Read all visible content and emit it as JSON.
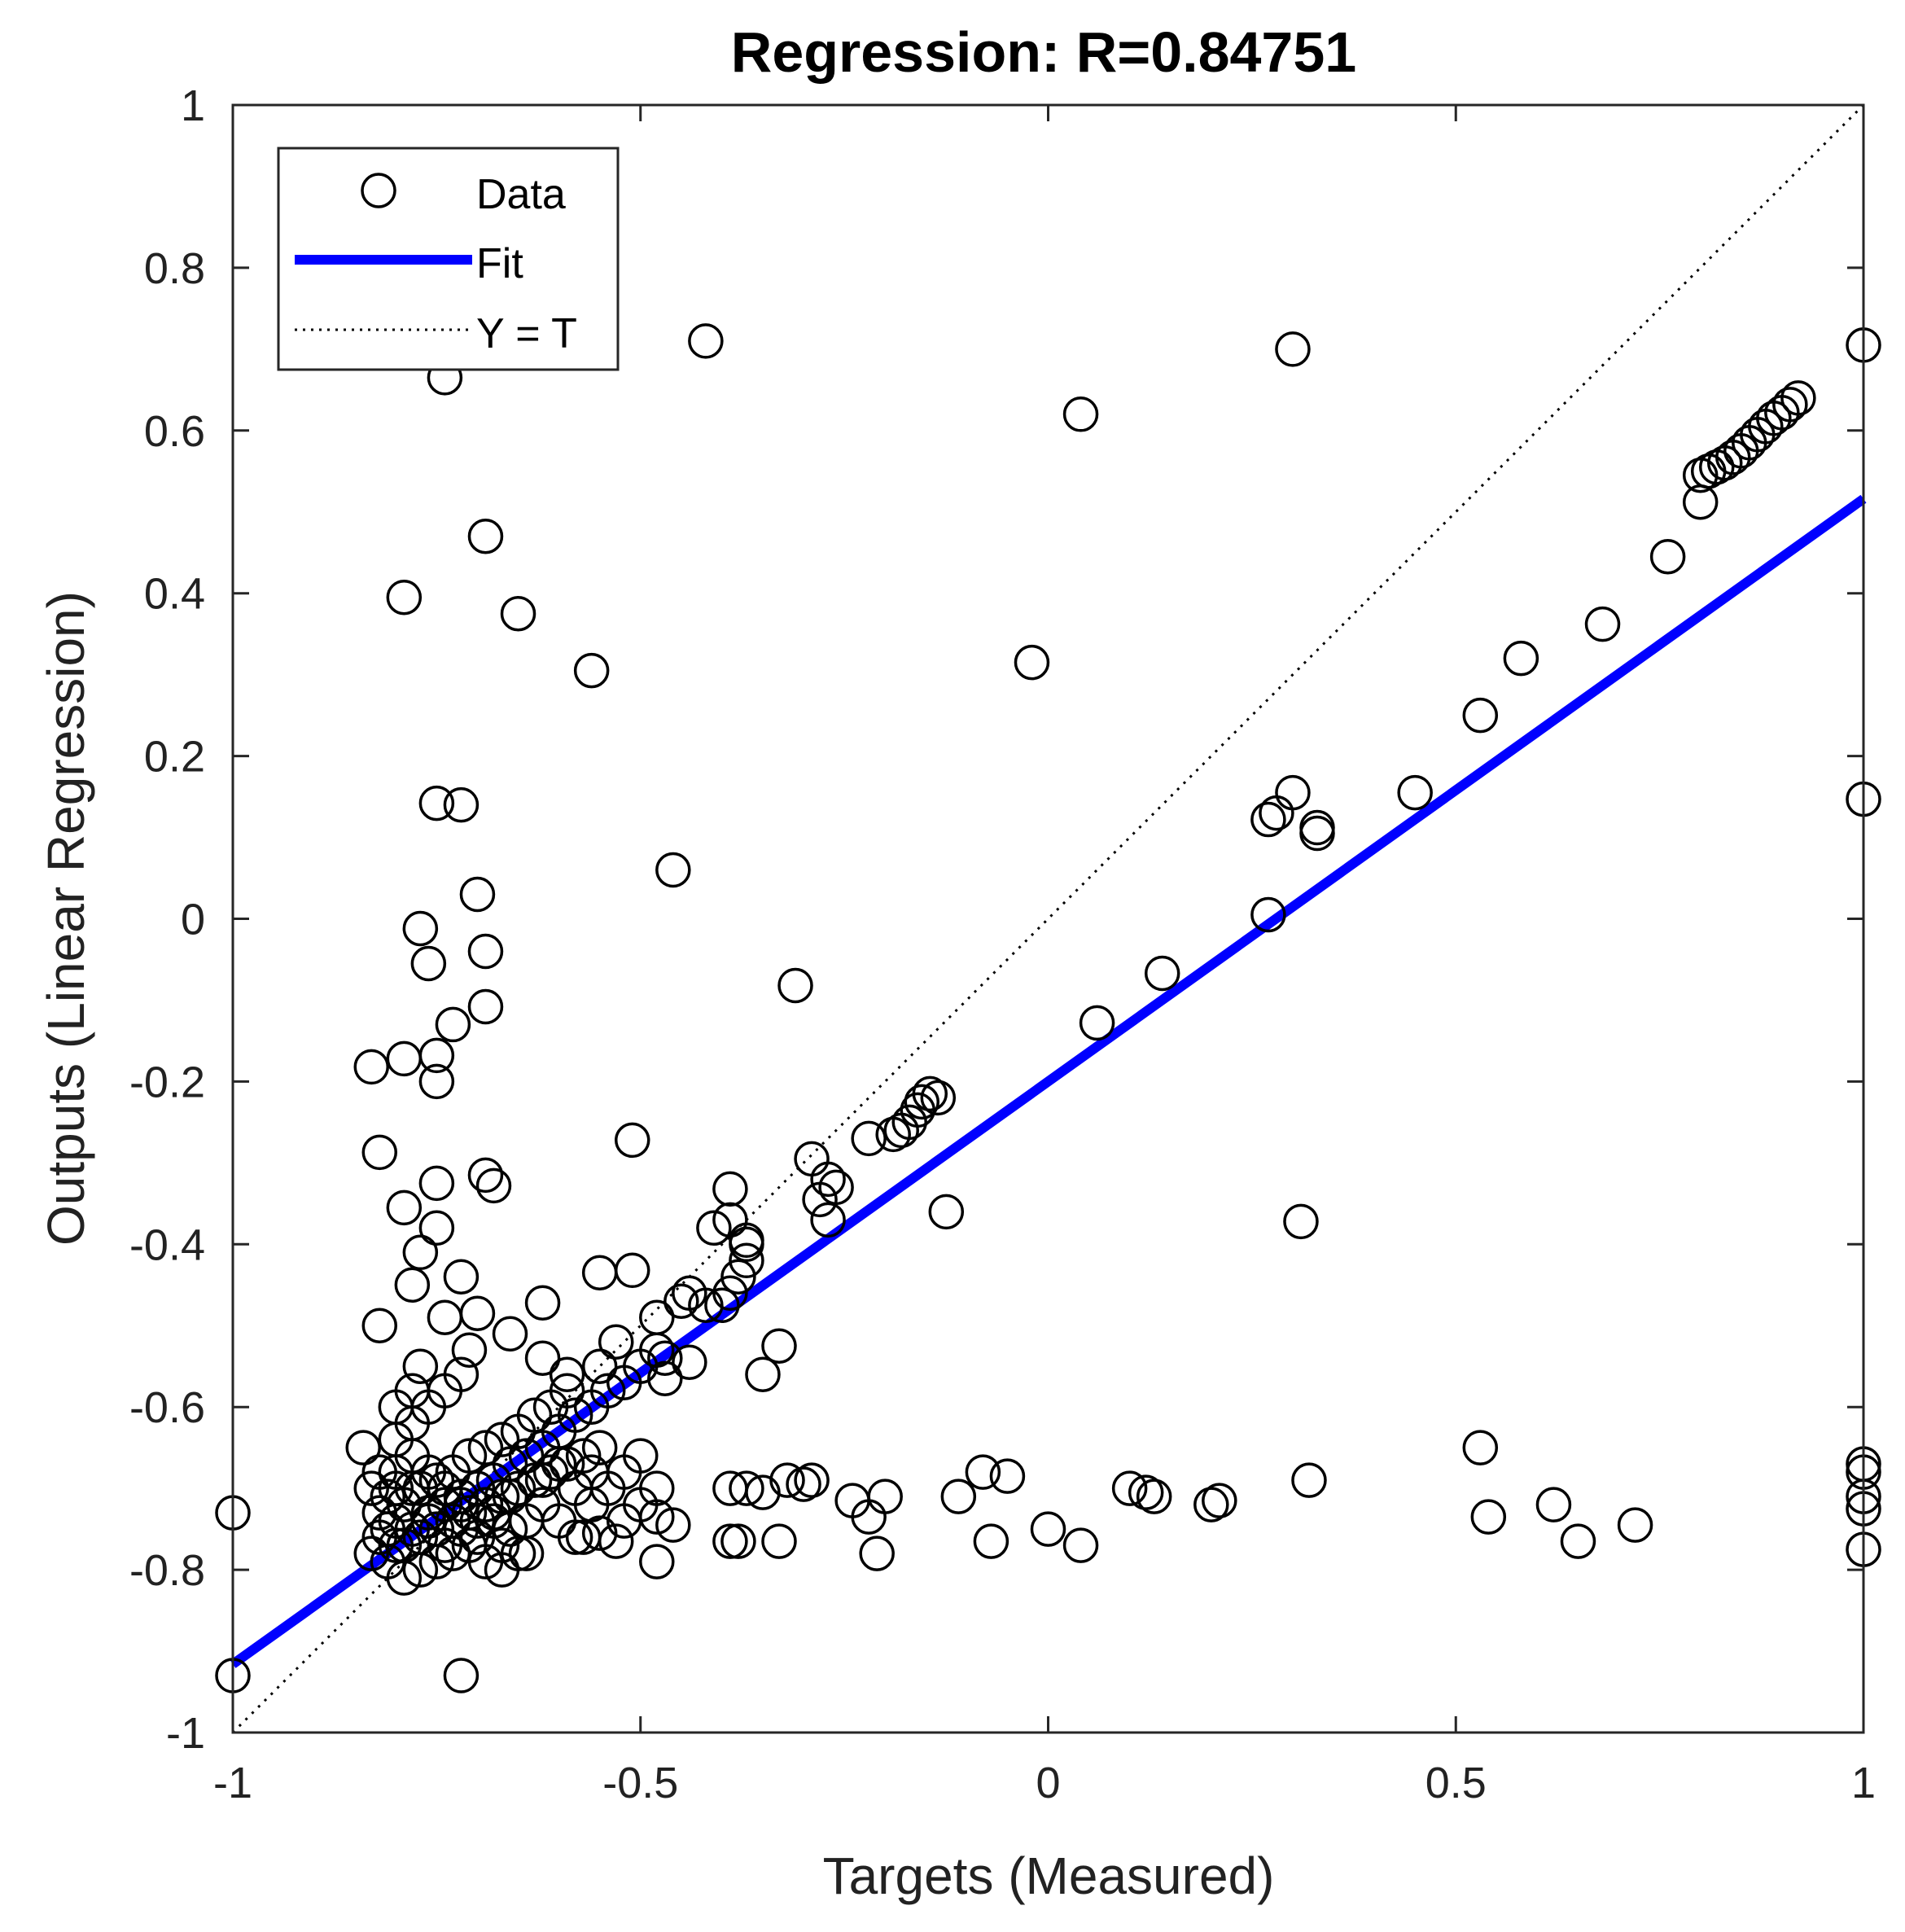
{
  "chart_data": {
    "type": "scatter",
    "title": "Regression: R=0.84751",
    "xlabel": "Targets (Measured)",
    "ylabel": "Outputs (Linear Regression)",
    "xlim": [
      -1,
      1
    ],
    "ylim": [
      -1,
      1
    ],
    "xticks": [
      -1,
      -0.5,
      0,
      0.5,
      1
    ],
    "yticks": [
      -1,
      -0.8,
      -0.6,
      -0.4,
      -0.2,
      0,
      0.2,
      0.4,
      0.6,
      0.8,
      1
    ],
    "legend": {
      "location": "top-left",
      "entries": [
        {
          "label": "Data",
          "style": "circle-marker"
        },
        {
          "label": "Fit",
          "style": "solid-line"
        },
        {
          "label": "Y = T",
          "style": "dotted-line"
        }
      ]
    },
    "fit_line": {
      "slope": 0.716,
      "intercept": -0.2,
      "color": "#0000ff"
    },
    "identity_line": {
      "color": "#000000"
    },
    "series": [
      {
        "name": "Data",
        "marker": "circle",
        "color": "#000000",
        "points": [
          [
            -1.0,
            -0.73
          ],
          [
            -1.0,
            -0.93
          ],
          [
            -0.42,
            0.71
          ],
          [
            -0.74,
            0.665
          ],
          [
            0.3,
            0.7
          ],
          [
            1.0,
            0.705
          ],
          [
            0.04,
            0.62
          ],
          [
            -0.69,
            0.47
          ],
          [
            -0.79,
            0.395
          ],
          [
            -0.65,
            0.375
          ],
          [
            -0.56,
            0.305
          ],
          [
            -0.02,
            0.315
          ],
          [
            -0.75,
            0.142
          ],
          [
            -0.72,
            0.14
          ],
          [
            -0.46,
            0.06
          ],
          [
            -0.7,
            0.03
          ],
          [
            -0.77,
            -0.012
          ],
          [
            -0.76,
            -0.055
          ],
          [
            -0.69,
            -0.04
          ],
          [
            -0.31,
            -0.082
          ],
          [
            -0.73,
            -0.13
          ],
          [
            -0.69,
            -0.108
          ],
          [
            -0.83,
            -0.182
          ],
          [
            -0.79,
            -0.172
          ],
          [
            -0.75,
            -0.168
          ],
          [
            -0.75,
            -0.2
          ],
          [
            -0.82,
            -0.287
          ],
          [
            -0.51,
            -0.272
          ],
          [
            -0.69,
            -0.315
          ],
          [
            -0.68,
            -0.328
          ],
          [
            -0.75,
            -0.325
          ],
          [
            -0.79,
            -0.355
          ],
          [
            -0.75,
            -0.38
          ],
          [
            -0.77,
            -0.41
          ],
          [
            -0.72,
            -0.44
          ],
          [
            -0.78,
            -0.45
          ],
          [
            -0.62,
            -0.472
          ],
          [
            -0.7,
            -0.485
          ],
          [
            -0.82,
            -0.5
          ],
          [
            -0.55,
            -0.435
          ],
          [
            -0.51,
            -0.432
          ],
          [
            -0.74,
            -0.49
          ],
          [
            -0.66,
            -0.51
          ],
          [
            -0.77,
            -0.55
          ],
          [
            -0.71,
            -0.53
          ],
          [
            -0.62,
            -0.54
          ],
          [
            -0.59,
            -0.56
          ],
          [
            -0.55,
            -0.55
          ],
          [
            -0.53,
            -0.52
          ],
          [
            -0.48,
            -0.49
          ],
          [
            -0.45,
            -0.47
          ],
          [
            -0.44,
            -0.46
          ],
          [
            -0.42,
            -0.475
          ],
          [
            -0.47,
            -0.54
          ],
          [
            -0.47,
            -0.565
          ],
          [
            -0.44,
            -0.545
          ],
          [
            -0.39,
            -0.37
          ],
          [
            -0.41,
            -0.38
          ],
          [
            -0.39,
            -0.332
          ],
          [
            -0.29,
            -0.295
          ],
          [
            -0.28,
            -0.345
          ],
          [
            -0.26,
            -0.33
          ],
          [
            -0.27,
            -0.32
          ],
          [
            -0.27,
            -0.37
          ],
          [
            -0.22,
            -0.27
          ],
          [
            -0.19,
            -0.265
          ],
          [
            -0.18,
            -0.26
          ],
          [
            -0.17,
            -0.25
          ],
          [
            -0.16,
            -0.235
          ],
          [
            -0.155,
            -0.225
          ],
          [
            -0.145,
            -0.215
          ],
          [
            -0.135,
            -0.22
          ],
          [
            -0.125,
            -0.36
          ],
          [
            -0.37,
            -0.4
          ],
          [
            -0.37,
            -0.42
          ],
          [
            -0.38,
            -0.44
          ],
          [
            -0.39,
            -0.46
          ],
          [
            -0.4,
            -0.475
          ],
          [
            -0.33,
            -0.525
          ],
          [
            -0.35,
            -0.56
          ],
          [
            -0.37,
            -0.395
          ],
          [
            -0.84,
            -0.65
          ],
          [
            -0.82,
            -0.68
          ],
          [
            -0.81,
            -0.71
          ],
          [
            -0.8,
            -0.74
          ],
          [
            -0.82,
            -0.76
          ],
          [
            -0.83,
            -0.78
          ],
          [
            -0.81,
            -0.79
          ],
          [
            -0.79,
            -0.81
          ],
          [
            -0.77,
            -0.8
          ],
          [
            -0.75,
            -0.79
          ],
          [
            -0.73,
            -0.78
          ],
          [
            -0.71,
            -0.77
          ],
          [
            -0.69,
            -0.79
          ],
          [
            -0.67,
            -0.8
          ],
          [
            -0.65,
            -0.78
          ],
          [
            -0.8,
            -0.77
          ],
          [
            -0.78,
            -0.75
          ],
          [
            -0.76,
            -0.74
          ],
          [
            -0.74,
            -0.72
          ],
          [
            -0.72,
            -0.71
          ],
          [
            -0.7,
            -0.7
          ],
          [
            -0.68,
            -0.69
          ],
          [
            -0.66,
            -0.67
          ],
          [
            -0.64,
            -0.66
          ],
          [
            -0.62,
            -0.65
          ],
          [
            -0.6,
            -0.63
          ],
          [
            -0.58,
            -0.61
          ],
          [
            -0.56,
            -0.6
          ],
          [
            -0.54,
            -0.58
          ],
          [
            -0.52,
            -0.57
          ],
          [
            -0.5,
            -0.55
          ],
          [
            -0.48,
            -0.53
          ],
          [
            -0.79,
            -0.72
          ],
          [
            -0.77,
            -0.7
          ],
          [
            -0.75,
            -0.69
          ],
          [
            -0.73,
            -0.68
          ],
          [
            -0.71,
            -0.66
          ],
          [
            -0.69,
            -0.65
          ],
          [
            -0.67,
            -0.64
          ],
          [
            -0.65,
            -0.63
          ],
          [
            -0.63,
            -0.61
          ],
          [
            -0.61,
            -0.6
          ],
          [
            -0.59,
            -0.58
          ],
          [
            -0.81,
            -0.75
          ],
          [
            -0.79,
            -0.77
          ],
          [
            -0.77,
            -0.76
          ],
          [
            -0.75,
            -0.75
          ],
          [
            -0.73,
            -0.74
          ],
          [
            -0.71,
            -0.73
          ],
          [
            -0.69,
            -0.72
          ],
          [
            -0.67,
            -0.71
          ],
          [
            -0.65,
            -0.7
          ],
          [
            -0.63,
            -0.69
          ],
          [
            -0.61,
            -0.68
          ],
          [
            -0.59,
            -0.67
          ],
          [
            -0.57,
            -0.66
          ],
          [
            -0.55,
            -0.65
          ],
          [
            -0.78,
            -0.62
          ],
          [
            -0.76,
            -0.6
          ],
          [
            -0.74,
            -0.58
          ],
          [
            -0.72,
            -0.56
          ],
          [
            -0.8,
            -0.6
          ],
          [
            -0.78,
            -0.58
          ],
          [
            -0.83,
            -0.7
          ],
          [
            -0.82,
            -0.73
          ],
          [
            -0.6,
            -0.74
          ],
          [
            -0.58,
            -0.76
          ],
          [
            -0.56,
            -0.72
          ],
          [
            -0.54,
            -0.7
          ],
          [
            -0.52,
            -0.68
          ],
          [
            -0.5,
            -0.66
          ],
          [
            -0.52,
            -0.74
          ],
          [
            -0.5,
            -0.72
          ],
          [
            -0.48,
            -0.7
          ],
          [
            -0.48,
            -0.735
          ],
          [
            -0.46,
            -0.745
          ],
          [
            -0.48,
            -0.79
          ],
          [
            -0.55,
            -0.755
          ],
          [
            -0.57,
            -0.76
          ],
          [
            -0.53,
            -0.765
          ],
          [
            -0.64,
            -0.78
          ],
          [
            -0.67,
            -0.77
          ],
          [
            -0.7,
            -0.76
          ],
          [
            -0.72,
            -0.75
          ],
          [
            -0.74,
            -0.77
          ],
          [
            -0.76,
            -0.73
          ],
          [
            -0.78,
            -0.7
          ],
          [
            -0.8,
            -0.68
          ],
          [
            -0.62,
            -0.72
          ],
          [
            -0.64,
            -0.74
          ],
          [
            -0.66,
            -0.75
          ],
          [
            -0.68,
            -0.74
          ],
          [
            -0.58,
            -0.7
          ],
          [
            -0.56,
            -0.68
          ],
          [
            -0.6,
            -0.67
          ],
          [
            -0.62,
            -0.69
          ],
          [
            -0.66,
            -0.71
          ],
          [
            -0.68,
            -0.73
          ],
          [
            -0.7,
            -0.74
          ],
          [
            -0.72,
            -0.72
          ],
          [
            -0.74,
            -0.7
          ],
          [
            -0.76,
            -0.68
          ],
          [
            -0.78,
            -0.66
          ],
          [
            -0.8,
            -0.64
          ],
          [
            -0.8,
            -0.7
          ],
          [
            -0.39,
            -0.7
          ],
          [
            -0.37,
            -0.7
          ],
          [
            -0.35,
            -0.705
          ],
          [
            -0.32,
            -0.69
          ],
          [
            -0.3,
            -0.695
          ],
          [
            -0.29,
            -0.69
          ],
          [
            -0.39,
            -0.765
          ],
          [
            -0.38,
            -0.765
          ],
          [
            -0.33,
            -0.765
          ],
          [
            -0.24,
            -0.715
          ],
          [
            -0.22,
            -0.735
          ],
          [
            -0.21,
            -0.78
          ],
          [
            -0.2,
            -0.71
          ],
          [
            -0.11,
            -0.71
          ],
          [
            -0.08,
            -0.68
          ],
          [
            -0.07,
            -0.765
          ],
          [
            -0.05,
            -0.685
          ],
          [
            0.0,
            -0.75
          ],
          [
            0.04,
            -0.77
          ],
          [
            0.1,
            -0.7
          ],
          [
            0.12,
            -0.705
          ],
          [
            0.13,
            -0.71
          ],
          [
            0.2,
            -0.72
          ],
          [
            0.21,
            -0.715
          ],
          [
            0.32,
            -0.69
          ],
          [
            0.53,
            -0.65
          ],
          [
            0.54,
            -0.735
          ],
          [
            0.62,
            -0.72
          ],
          [
            0.65,
            -0.765
          ],
          [
            0.72,
            -0.745
          ],
          [
            1.0,
            -0.67
          ],
          [
            1.0,
            -0.68
          ],
          [
            1.0,
            -0.71
          ],
          [
            1.0,
            -0.725
          ],
          [
            1.0,
            -0.775
          ],
          [
            -0.72,
            -0.93
          ],
          [
            0.31,
            -0.372
          ],
          [
            0.27,
            0.005
          ],
          [
            0.14,
            -0.067
          ],
          [
            0.06,
            -0.128
          ],
          [
            0.27,
            0.122
          ],
          [
            0.28,
            0.13
          ],
          [
            0.3,
            0.155
          ],
          [
            0.33,
            0.105
          ],
          [
            0.33,
            0.112
          ],
          [
            0.45,
            0.155
          ],
          [
            0.53,
            0.25
          ],
          [
            0.58,
            0.32
          ],
          [
            0.68,
            0.362
          ],
          [
            0.76,
            0.445
          ],
          [
            0.8,
            0.512
          ],
          [
            0.8,
            0.545
          ],
          [
            0.81,
            0.55
          ],
          [
            0.82,
            0.555
          ],
          [
            0.83,
            0.56
          ],
          [
            0.84,
            0.567
          ],
          [
            0.85,
            0.575
          ],
          [
            0.86,
            0.585
          ],
          [
            0.87,
            0.595
          ],
          [
            0.88,
            0.605
          ],
          [
            0.89,
            0.615
          ],
          [
            0.9,
            0.622
          ],
          [
            0.91,
            0.632
          ],
          [
            0.92,
            0.64
          ],
          [
            1.0,
            0.147
          ]
        ]
      }
    ]
  }
}
